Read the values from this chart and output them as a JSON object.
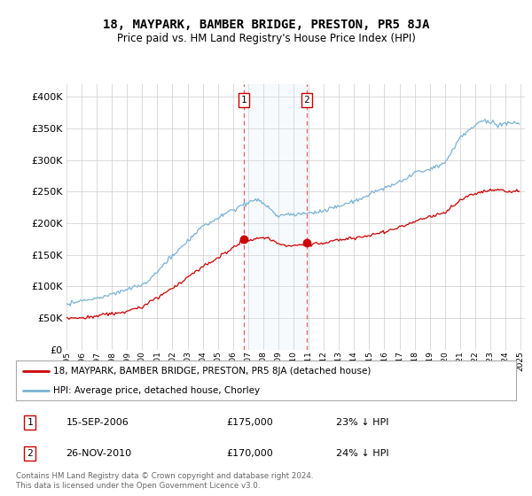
{
  "title": "18, MAYPARK, BAMBER BRIDGE, PRESTON, PR5 8JA",
  "subtitle": "Price paid vs. HM Land Registry's House Price Index (HPI)",
  "hpi_color": "#7ab3d4",
  "property_color": "#cc0000",
  "shade_color": "#daeaf5",
  "dashed_color": "#e06060",
  "ylim_min": 0,
  "ylim_max": 420000,
  "yticks": [
    0,
    50000,
    100000,
    150000,
    200000,
    250000,
    300000,
    350000,
    400000
  ],
  "t1_year_f": 2006.708,
  "t2_year_f": 2010.875,
  "t1_price": 175000,
  "t2_price": 170000,
  "legend_property": "18, MAYPARK, BAMBER BRIDGE, PRESTON, PR5 8JA (detached house)",
  "legend_hpi": "HPI: Average price, detached house, Chorley",
  "table_row1": [
    "1",
    "15-SEP-2006",
    "£175,000",
    "23% ↓ HPI"
  ],
  "table_row2": [
    "2",
    "26-NOV-2010",
    "£170,000",
    "24% ↓ HPI"
  ],
  "footer": "Contains HM Land Registry data © Crown copyright and database right 2024.\nThis data is licensed under the Open Government Licence v3.0.",
  "bg": "#ffffff",
  "grid_color": "#cccccc",
  "hpi_noise_scale": 1200,
  "prop_noise_scale": 800
}
